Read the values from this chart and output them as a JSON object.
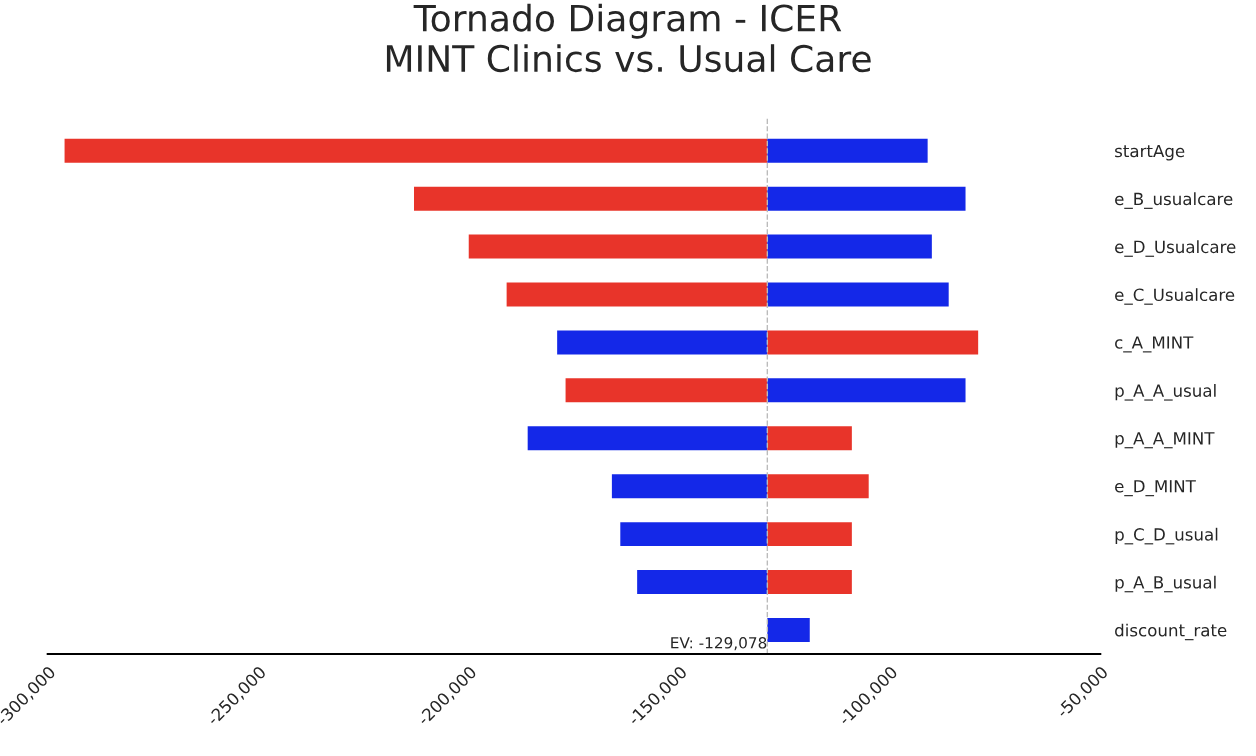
{
  "chart_data": {
    "type": "bar",
    "orientation": "horizontal",
    "title": "Tornado Diagram - ICER\nMINT Clinics vs. Usual Care",
    "categories": [
      "startAge",
      "e_B_usualcare",
      "e_D_Usualcare",
      "e_C_Usualcare",
      "c_A_MINT",
      "p_A_A_usual",
      "p_A_A_MINT",
      "e_D_MINT",
      "p_C_D_usual",
      "p_A_B_usual",
      "discount_rate"
    ],
    "series": [
      {
        "values": [
          -166922,
          -83922,
          -70922,
          -61922,
          -49922,
          -47922,
          -56922,
          -36922,
          -34922,
          -30922,
          null
        ],
        "base": [
          -129078,
          -129078,
          -129078,
          -129078,
          -129078,
          -129078,
          -129078,
          -129078,
          -129078,
          -129078,
          null
        ],
        "colors": [
          "#e8342a",
          "#e8342a",
          "#e8342a",
          "#e8342a",
          "#1428e8",
          "#e8342a",
          "#1428e8",
          "#1428e8",
          "#1428e8",
          "#1428e8",
          "#1428e8"
        ]
      },
      {
        "values": [
          38078,
          47078,
          39078,
          43078,
          50078,
          47078,
          20078,
          24078,
          20078,
          20078,
          10078
        ],
        "base": [
          -129078,
          -129078,
          -129078,
          -129078,
          -129078,
          -129078,
          -129078,
          -129078,
          -129078,
          -129078,
          -129078
        ],
        "colors": [
          "#1428e8",
          "#1428e8",
          "#1428e8",
          "#1428e8",
          "#e8342a",
          "#1428e8",
          "#e8342a",
          "#e8342a",
          "#e8342a",
          "#e8342a",
          "#1428e8"
        ]
      }
    ],
    "xlim": [
      -300000,
      -50000
    ],
    "xticks": [
      {
        "value": -300000,
        "label": "-300,000"
      },
      {
        "value": -250000,
        "label": "-250,000"
      },
      {
        "value": -200000,
        "label": "-200,000"
      },
      {
        "value": -150000,
        "label": "-150,000"
      },
      {
        "value": -100000,
        "label": "-100,000"
      },
      {
        "value": -50000,
        "label": "-50,000"
      }
    ],
    "ref_lines": [
      {
        "axis": "x",
        "value": -129078,
        "label": "EV: -129,078",
        "color": "#bbbbbb",
        "line_style": "dashed"
      }
    ],
    "grid": false
  }
}
